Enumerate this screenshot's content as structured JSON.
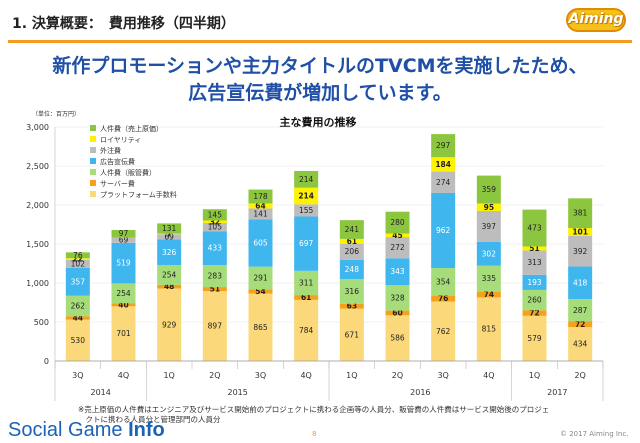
{
  "slide": {
    "title": "1. 決算概要：　費用推移（四半期）",
    "logo_text": "Aiming",
    "headline_line1": "新作プロモーションや主力タイトルのTVCMを実施したため、",
    "headline_line2": "広告宣伝費が増加しています。",
    "footnote_line1": "※売上原価の人件費はエンジニア及びサービス開始前のプロジェクトに携わる企画等の人員分、販管費の人件費はサービス開始後のプロジェ",
    "footnote_line2": "　クトに携わる人員分と管理部門の人員分",
    "brand_prefix": "Social Game ",
    "brand_bold": "Info",
    "page_number": "8",
    "copyright": "© 2017 Aiming Inc."
  },
  "chart_data": {
    "type": "bar",
    "stacked": true,
    "title": "主な費用の推移",
    "unit_label": "（単位：百万円）",
    "ylim": [
      0,
      3000
    ],
    "yticks": [
      "0",
      "500",
      "1,000",
      "1,500",
      "2,000",
      "2,500",
      "3,000"
    ],
    "ytick_values": [
      0,
      500,
      1000,
      1500,
      2000,
      2500,
      3000
    ],
    "categories": [
      "3Q",
      "4Q",
      "1Q",
      "2Q",
      "3Q",
      "4Q",
      "1Q",
      "2Q",
      "3Q",
      "4Q",
      "1Q",
      "2Q"
    ],
    "years": [
      {
        "label": "2014",
        "span": 2
      },
      {
        "label": "2015",
        "span": 4
      },
      {
        "label": "2016",
        "span": 4
      },
      {
        "label": "2017",
        "span": 2
      }
    ],
    "legend_position": "top-left",
    "series": [
      {
        "name": "プラットフォーム手数料",
        "color": "#fbd87a",
        "values": [
          530,
          701,
          929,
          897,
          865,
          784,
          671,
          586,
          762,
          815,
          579,
          434
        ]
      },
      {
        "name": "サーバー費",
        "color": "#f4a21c",
        "values": [
          44,
          40,
          48,
          51,
          54,
          61,
          63,
          60,
          76,
          74,
          72,
          72
        ]
      },
      {
        "name": "人件費（販管費）",
        "color": "#a6dc7a",
        "values": [
          262,
          254,
          254,
          283,
          291,
          311,
          316,
          328,
          354,
          335,
          260,
          287
        ]
      },
      {
        "name": "広告宣伝費",
        "color": "#3fb6ee",
        "values": [
          357,
          519,
          326,
          433,
          605,
          697,
          248,
          343,
          962,
          302,
          193,
          418
        ]
      },
      {
        "name": "外注費",
        "color": "#bdbdbd",
        "values": [
          102,
          69,
          69,
          105,
          141,
          155,
          206,
          272,
          274,
          397,
          313,
          392
        ]
      },
      {
        "name": "ロイヤリティ",
        "color": "#fff200",
        "values": [
          22,
          null,
          7,
          32,
          64,
          214,
          61,
          45,
          184,
          95,
          51,
          101
        ]
      },
      {
        "name": "人件費（売上原価）",
        "color": "#8cc63f",
        "values": [
          76,
          97,
          131,
          145,
          178,
          214,
          241,
          280,
          297,
          359,
          473,
          381
        ]
      }
    ]
  }
}
